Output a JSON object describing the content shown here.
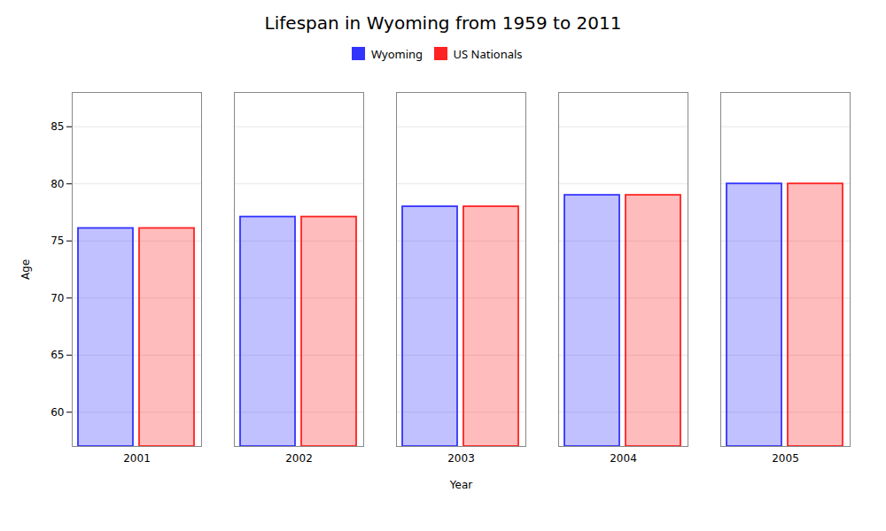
{
  "chart_data": {
    "type": "bar",
    "title": "Lifespan in Wyoming from 1959 to 2011",
    "xlabel": "Year",
    "ylabel": "Age",
    "categories": [
      "2001",
      "2002",
      "2003",
      "2004",
      "2005"
    ],
    "series": [
      {
        "name": "Wyoming",
        "color": "#3333ff",
        "values": [
          76.1,
          77.1,
          78.0,
          79.0,
          80.0
        ]
      },
      {
        "name": "US Nationals",
        "color": "#ff2222",
        "values": [
          76.1,
          77.1,
          78.0,
          79.0,
          80.0
        ]
      }
    ],
    "ylim": [
      57,
      88
    ],
    "yticks": [
      60,
      65,
      70,
      75,
      80,
      85
    ],
    "grid": true,
    "legend": "top"
  }
}
